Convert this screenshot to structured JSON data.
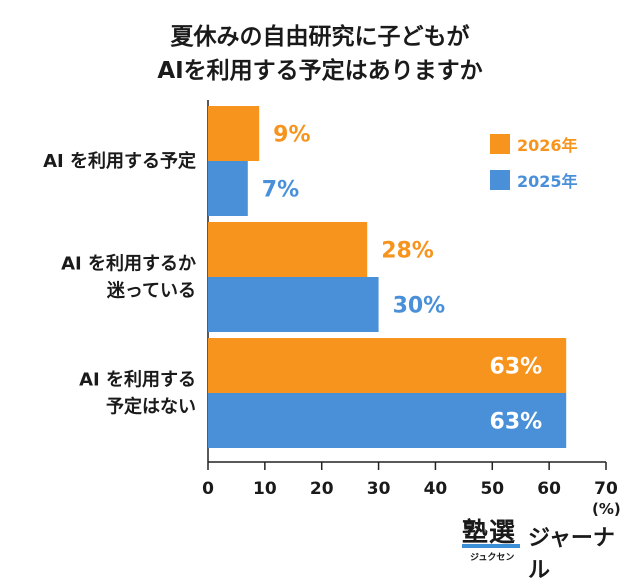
{
  "title": {
    "line1": "夏休みの自由研究に子どもが",
    "line2": "AIを利用する予定はありますか"
  },
  "unit": "(%)",
  "logo": {
    "kanji": "塾選",
    "kana": "ジュクセン",
    "word": "ジャーナル"
  },
  "colors": {
    "y2026": "#f7941d",
    "y2025": "#4a90d9"
  },
  "chart_data": {
    "type": "bar",
    "orientation": "horizontal",
    "title": "夏休みの自由研究に子どもがAIを利用する予定はありますか",
    "categories": [
      [
        "AI を利用する予定"
      ],
      [
        "AI を利用するか",
        "迷っている"
      ],
      [
        "AI を利用する",
        "予定はない"
      ]
    ],
    "series": [
      {
        "name": "2026年",
        "color": "#f7941d",
        "values": [
          9,
          28,
          63
        ],
        "labels": [
          "9%",
          "28%",
          "63%"
        ]
      },
      {
        "name": "2025年",
        "color": "#4a90d9",
        "values": [
          7,
          30,
          63
        ],
        "labels": [
          "7%",
          "30%",
          "63%"
        ]
      }
    ],
    "xlim": [
      0,
      70
    ],
    "xticks": [
      0,
      10,
      20,
      30,
      40,
      50,
      60,
      70
    ],
    "unit": "%",
    "legend": "top-right",
    "grid": false
  }
}
